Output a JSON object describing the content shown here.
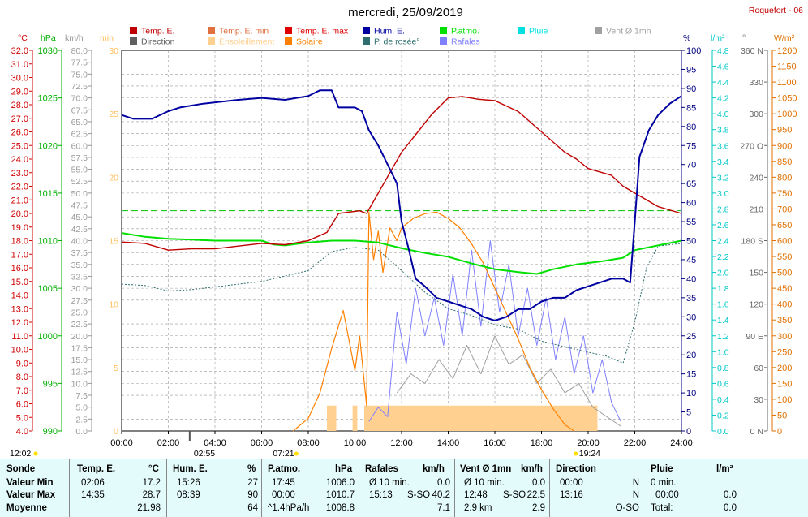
{
  "title": "mercredi, 25/09/2019",
  "station": "Roquefort - 06",
  "legend": [
    {
      "label": "Temp. E.",
      "color": "#c00000"
    },
    {
      "label": "Temp. E. min",
      "color": "#e07040"
    },
    {
      "label": "Temp. E. max",
      "color": "#e00000"
    },
    {
      "label": "Hum. E.",
      "color": "#0000a0"
    },
    {
      "label": "P.atmo.",
      "color": "#00e000"
    },
    {
      "label": "Pluie",
      "color": "#00e0e0"
    },
    {
      "label": "Vent Ø 1mn",
      "color": "#a0a0a0"
    },
    {
      "label": "Direction",
      "color": "#606060"
    },
    {
      "label": "Ensoleillement",
      "color": "#ffd090"
    },
    {
      "label": "Solaire",
      "color": "#ff8000"
    },
    {
      "label": "P. de rosée°",
      "color": "#2e6e6e"
    },
    {
      "label": "Rafales",
      "color": "#8080ff"
    }
  ],
  "axis_units": {
    "temp": "°C",
    "pressure": "hPa",
    "wind": "km/h",
    "sun": "min",
    "hum": "%",
    "rain": "l/m²",
    "dir": "°",
    "solar": "W/m²"
  },
  "time_markers": {
    "dawn": "02:55",
    "sunrise": "07:21",
    "noon": "12:02",
    "sunset": "19:24"
  },
  "chart_data": {
    "type": "line",
    "x_ticks": [
      "00:00",
      "02:00",
      "04:00",
      "06:00",
      "08:00",
      "10:00",
      "12:00",
      "14:00",
      "16:00",
      "18:00",
      "20:00",
      "22:00",
      "24:00"
    ],
    "axes": {
      "temp": {
        "min": 4.0,
        "max": 32.0,
        "step": 1.0
      },
      "pressure": {
        "min": 990,
        "max": 1030,
        "step": 5
      },
      "wind": {
        "min": 0,
        "max": 80,
        "step": 2.5
      },
      "sun": {
        "min": 0,
        "max": 30,
        "step": 5
      },
      "hum": {
        "min": 0,
        "max": 100,
        "step": 5
      },
      "rain": {
        "min": 0,
        "max": 4.8,
        "step": 0.2
      },
      "dir": {
        "ticks": [
          [
            "360 N",
            360
          ],
          [
            "330",
            330
          ],
          [
            "300",
            300
          ],
          [
            "270 O",
            270
          ],
          [
            "240",
            240
          ],
          [
            "210",
            210
          ],
          [
            "180 S",
            180
          ],
          [
            "150",
            150
          ],
          [
            "120",
            120
          ],
          [
            "90 E",
            90
          ],
          [
            "60",
            60
          ],
          [
            "30",
            30
          ],
          [
            "0 N",
            0
          ]
        ]
      },
      "solar": {
        "min": 0,
        "max": 1200,
        "step": 50
      }
    },
    "series": [
      {
        "name": "Temp. E.",
        "axis": "temp",
        "color": "#c00000",
        "points": [
          [
            0,
            17.9
          ],
          [
            1,
            17.8
          ],
          [
            2,
            17.3
          ],
          [
            3,
            17.4
          ],
          [
            4,
            17.4
          ],
          [
            5,
            17.6
          ],
          [
            6,
            17.8
          ],
          [
            7,
            17.7
          ],
          [
            8,
            18.0
          ],
          [
            8.8,
            18.6
          ],
          [
            9.3,
            20.0
          ],
          [
            10.2,
            20.2
          ],
          [
            10.5,
            20.0
          ],
          [
            11,
            21.5
          ],
          [
            11.5,
            23.0
          ],
          [
            12,
            24.5
          ],
          [
            12.7,
            26.0
          ],
          [
            13.3,
            27.3
          ],
          [
            14,
            28.5
          ],
          [
            14.6,
            28.6
          ],
          [
            15.3,
            28.4
          ],
          [
            16,
            28.3
          ],
          [
            17,
            27.5
          ],
          [
            18,
            26.0
          ],
          [
            19,
            24.5
          ],
          [
            19.5,
            24.0
          ],
          [
            20,
            23.3
          ],
          [
            21,
            22.8
          ],
          [
            21.5,
            22.0
          ],
          [
            22,
            21.5
          ],
          [
            23,
            20.5
          ],
          [
            24,
            20.0
          ]
        ]
      },
      {
        "name": "Hum. E.",
        "axis": "hum",
        "color": "#0000a0",
        "points": [
          [
            0,
            83
          ],
          [
            0.5,
            82
          ],
          [
            1.3,
            82
          ],
          [
            2,
            84
          ],
          [
            2.5,
            85
          ],
          [
            3.5,
            86
          ],
          [
            5,
            87
          ],
          [
            6,
            87.5
          ],
          [
            7,
            87
          ],
          [
            8,
            88
          ],
          [
            8.5,
            89.5
          ],
          [
            9,
            89.5
          ],
          [
            9.3,
            85
          ],
          [
            10,
            85
          ],
          [
            10.3,
            84
          ],
          [
            10.6,
            79
          ],
          [
            11,
            75
          ],
          [
            11.4,
            70
          ],
          [
            11.8,
            65
          ],
          [
            12,
            55
          ],
          [
            12.3,
            48
          ],
          [
            12.6,
            40
          ],
          [
            13,
            38
          ],
          [
            13.5,
            35
          ],
          [
            14,
            34
          ],
          [
            14.5,
            33
          ],
          [
            15,
            32
          ],
          [
            15.5,
            30
          ],
          [
            16,
            29
          ],
          [
            16.5,
            30
          ],
          [
            17,
            32
          ],
          [
            17.5,
            32
          ],
          [
            18,
            34
          ],
          [
            18.5,
            35
          ],
          [
            19,
            35
          ],
          [
            19.5,
            37
          ],
          [
            20,
            38
          ],
          [
            21,
            40
          ],
          [
            21.5,
            40
          ],
          [
            21.8,
            39
          ],
          [
            22,
            55
          ],
          [
            22.2,
            72
          ],
          [
            22.6,
            79
          ],
          [
            23,
            83
          ],
          [
            23.5,
            86
          ],
          [
            24,
            88
          ]
        ]
      },
      {
        "name": "P.atmo.",
        "axis": "pressure",
        "color": "#00e000",
        "points": [
          [
            0,
            1010.8
          ],
          [
            1,
            1010.4
          ],
          [
            2,
            1010.2
          ],
          [
            3,
            1010.1
          ],
          [
            4,
            1010.0
          ],
          [
            5,
            1010.0
          ],
          [
            6,
            1010.0
          ],
          [
            6.5,
            1009.6
          ],
          [
            7,
            1009.5
          ],
          [
            8,
            1009.8
          ],
          [
            9,
            1010.0
          ],
          [
            10,
            1010.0
          ],
          [
            11,
            1009.8
          ],
          [
            12,
            1009.2
          ],
          [
            13,
            1008.7
          ],
          [
            14,
            1008.3
          ],
          [
            15,
            1007.6
          ],
          [
            16,
            1007.0
          ],
          [
            17,
            1006.7
          ],
          [
            17.8,
            1006.5
          ],
          [
            18.5,
            1007.0
          ],
          [
            19.5,
            1007.5
          ],
          [
            20.5,
            1007.8
          ],
          [
            21.5,
            1008.2
          ],
          [
            22,
            1009.0
          ],
          [
            23,
            1009.5
          ],
          [
            24,
            1010.0
          ]
        ]
      },
      {
        "name": "P. de rosée°",
        "axis": "temp",
        "color": "#2e6e6e",
        "points": [
          [
            0,
            14.8
          ],
          [
            1,
            14.7
          ],
          [
            2,
            14.3
          ],
          [
            3,
            14.4
          ],
          [
            4,
            14.6
          ],
          [
            5,
            14.8
          ],
          [
            6,
            15.0
          ],
          [
            7,
            15.4
          ],
          [
            8,
            15.8
          ],
          [
            9,
            17.2
          ],
          [
            10,
            17.5
          ],
          [
            11,
            17.3
          ],
          [
            12,
            15.8
          ],
          [
            13,
            14.2
          ],
          [
            14,
            13.0
          ],
          [
            15,
            12.5
          ],
          [
            16,
            11.8
          ],
          [
            17,
            11.5
          ],
          [
            18,
            10.6
          ],
          [
            19,
            10.2
          ],
          [
            20,
            9.8
          ],
          [
            20.8,
            9.5
          ],
          [
            21.5,
            9.0
          ],
          [
            22,
            12.0
          ],
          [
            22.5,
            16.0
          ],
          [
            23,
            17.6
          ],
          [
            24,
            17.8
          ]
        ]
      },
      {
        "name": "Solaire",
        "axis": "solar",
        "color": "#ff8000",
        "points": [
          [
            7.35,
            0
          ],
          [
            8,
            40
          ],
          [
            8.5,
            120
          ],
          [
            9,
            260
          ],
          [
            9.5,
            380
          ],
          [
            10,
            190
          ],
          [
            10.2,
            300
          ],
          [
            10.5,
            80
          ],
          [
            10.6,
            690
          ],
          [
            10.8,
            540
          ],
          [
            11,
            630
          ],
          [
            11.2,
            500
          ],
          [
            11.5,
            640
          ],
          [
            11.8,
            600
          ],
          [
            12,
            640
          ],
          [
            12.5,
            670
          ],
          [
            13,
            685
          ],
          [
            13.5,
            690
          ],
          [
            14,
            670
          ],
          [
            14.5,
            640
          ],
          [
            15,
            590
          ],
          [
            15.5,
            530
          ],
          [
            16,
            450
          ],
          [
            16.5,
            370
          ],
          [
            17,
            290
          ],
          [
            17.5,
            200
          ],
          [
            18,
            130
          ],
          [
            18.5,
            70
          ],
          [
            19,
            20
          ],
          [
            19.4,
            0
          ]
        ]
      },
      {
        "name": "Rafales",
        "axis": "wind",
        "color": "#8080ff",
        "points": [
          [
            10.6,
            2
          ],
          [
            11,
            5
          ],
          [
            11.4,
            3
          ],
          [
            11.8,
            25
          ],
          [
            12.2,
            14
          ],
          [
            12.6,
            30
          ],
          [
            13,
            20
          ],
          [
            13.4,
            28
          ],
          [
            13.8,
            18
          ],
          [
            14.2,
            33
          ],
          [
            14.6,
            20
          ],
          [
            15,
            38
          ],
          [
            15.4,
            22
          ],
          [
            15.8,
            40
          ],
          [
            16.2,
            25
          ],
          [
            16.6,
            35
          ],
          [
            17,
            20
          ],
          [
            17.4,
            30
          ],
          [
            17.8,
            18
          ],
          [
            18.2,
            28
          ],
          [
            18.6,
            15
          ],
          [
            19,
            24
          ],
          [
            19.4,
            12
          ],
          [
            19.8,
            20
          ],
          [
            20.2,
            8
          ],
          [
            20.6,
            15
          ],
          [
            21,
            6
          ],
          [
            21.4,
            2
          ]
        ]
      },
      {
        "name": "Vent Ø 1mn",
        "axis": "wind",
        "color": "#a0a0a0",
        "points": [
          [
            11.8,
            8
          ],
          [
            12.4,
            12
          ],
          [
            13,
            10
          ],
          [
            13.6,
            15
          ],
          [
            14.2,
            11
          ],
          [
            14.8,
            18
          ],
          [
            15.4,
            12
          ],
          [
            16,
            20
          ],
          [
            16.6,
            14
          ],
          [
            17.2,
            16
          ],
          [
            17.8,
            10
          ],
          [
            18.4,
            13
          ],
          [
            19,
            8
          ],
          [
            19.6,
            10
          ],
          [
            20.2,
            5
          ],
          [
            20.8,
            3
          ],
          [
            21.4,
            1
          ]
        ]
      }
    ],
    "sunshine_minutes": [
      [
        8.8,
        9.2
      ],
      [
        9.9,
        10.1
      ],
      [
        10.4,
        20.4
      ]
    ],
    "sunshine_level": 2,
    "reference_line": {
      "axis": "temp",
      "value": 20.2,
      "color": "#00c000"
    }
  },
  "stats": {
    "headers": {
      "sonde": "Sonde",
      "temp": "Temp. E.",
      "temp_u": "°C",
      "hum": "Hum. E.",
      "hum_u": "%",
      "patm": "P.atmo.",
      "patm_u": "hPa",
      "raf": "Rafales",
      "raf_u": "km/h",
      "vent": "Vent Ø 1mn",
      "vent_u": "km/h",
      "dir": "Direction",
      "pluie": "Pluie",
      "pluie_u": "l/m²"
    },
    "rows": [
      {
        "label": "Valeur Min",
        "temp_t": "02:06",
        "temp_v": "17.2",
        "hum_t": "15:26",
        "hum_v": "27",
        "patm_t": "17:45",
        "patm_v": "1006.0",
        "raf_t": "Ø 10 min.",
        "raf_v": "0.0",
        "vent_t": "Ø 10 min.",
        "vent_v": "0.0",
        "dir_t": "00:00",
        "dir_v": "N",
        "pluie_t": "0 min.",
        "pluie_v": ""
      },
      {
        "label": "Valeur Max",
        "temp_t": "14:35",
        "temp_v": "28.7",
        "hum_t": "08:39",
        "hum_v": "90",
        "patm_t": "00:00",
        "patm_v": "1010.7",
        "raf_t": "15:13",
        "raf_d": "S-SO",
        "raf_v": "40.2",
        "vent_t": "12:48",
        "vent_d": "S-SO",
        "vent_v": "22.5",
        "dir_t": "13:16",
        "dir_v": "N",
        "pluie_t": "00:00",
        "pluie_v": "0.0"
      },
      {
        "label": "Moyenne",
        "temp_t": "",
        "temp_v": "21.98",
        "hum_t": "",
        "hum_v": "64",
        "patm_t": "^1.4hPa/h",
        "patm_v": "1008.8",
        "raf_t": "",
        "raf_v": "7.1",
        "vent_t": "2.9 km",
        "vent_v": "2.9",
        "dir_t": "",
        "dir_v": "O-SO",
        "pluie_t": "Total:",
        "pluie_v": "0.0"
      }
    ]
  }
}
